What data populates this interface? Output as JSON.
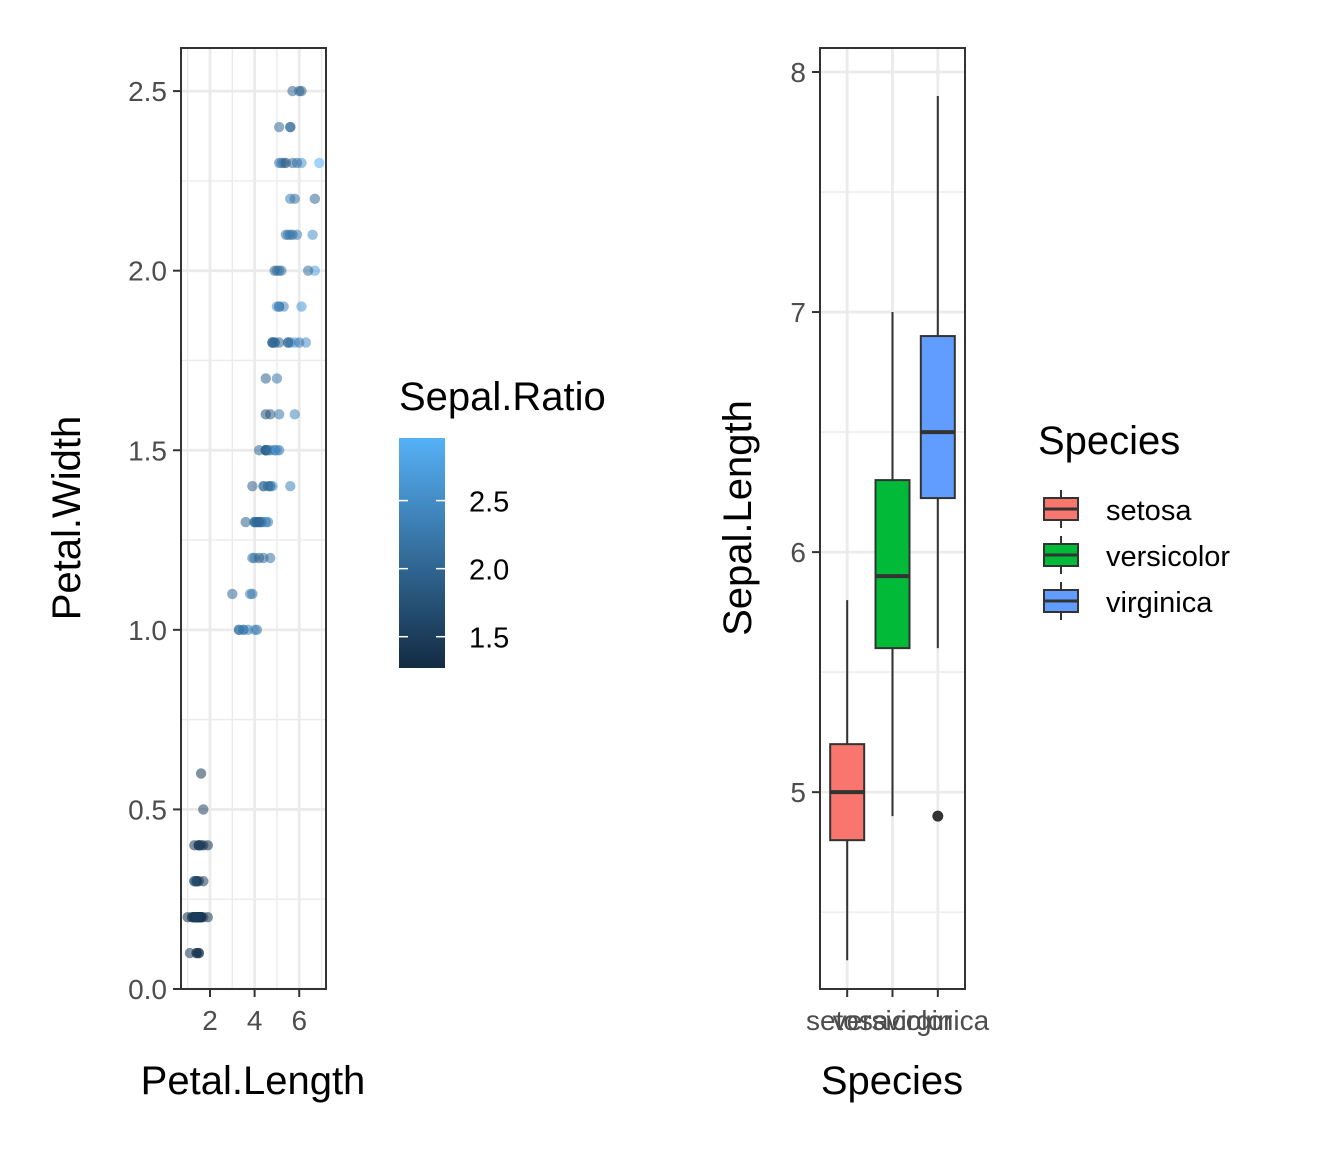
{
  "chart_data": [
    {
      "type": "scatter",
      "title": "",
      "xlabel": "Petal.Length",
      "ylabel": "Petal.Width",
      "xlim": [
        0.7,
        7.2
      ],
      "ylim": [
        0.0,
        2.62
      ],
      "x_ticks": [
        2,
        4,
        6
      ],
      "x_tick_labels": [
        "2",
        "4",
        "6"
      ],
      "y_ticks": [
        0.0,
        0.5,
        1.0,
        1.5,
        2.0,
        2.5
      ],
      "y_tick_labels": [
        "0.0",
        "0.5",
        "1.0",
        "1.5",
        "2.0",
        "2.5"
      ],
      "grid": true,
      "color_legend": {
        "title": "Sepal.Ratio",
        "position": "right",
        "range": [
          1.27,
          2.96
        ],
        "breaks": [
          1.5,
          2.0,
          2.5
        ],
        "break_labels": [
          "1.5",
          "2.0",
          "2.5"
        ],
        "low_color": "#132B43",
        "high_color": "#56B1F7"
      },
      "points": [
        {
          "x": 1.4,
          "y": 0.2,
          "c": 1.43
        },
        {
          "x": 1.4,
          "y": 0.2,
          "c": 1.63
        },
        {
          "x": 1.3,
          "y": 0.2,
          "c": 1.47
        },
        {
          "x": 1.5,
          "y": 0.2,
          "c": 1.48
        },
        {
          "x": 1.4,
          "y": 0.2,
          "c": 1.39
        },
        {
          "x": 1.7,
          "y": 0.4,
          "c": 1.39
        },
        {
          "x": 1.4,
          "y": 0.3,
          "c": 1.35
        },
        {
          "x": 1.5,
          "y": 0.2,
          "c": 1.47
        },
        {
          "x": 1.4,
          "y": 0.2,
          "c": 1.52
        },
        {
          "x": 1.5,
          "y": 0.1,
          "c": 1.58
        },
        {
          "x": 1.5,
          "y": 0.2,
          "c": 1.46
        },
        {
          "x": 1.6,
          "y": 0.2,
          "c": 1.41
        },
        {
          "x": 1.4,
          "y": 0.1,
          "c": 1.6
        },
        {
          "x": 1.1,
          "y": 0.1,
          "c": 1.43
        },
        {
          "x": 1.2,
          "y": 0.2,
          "c": 1.45
        },
        {
          "x": 1.5,
          "y": 0.4,
          "c": 1.3
        },
        {
          "x": 1.3,
          "y": 0.4,
          "c": 1.39
        },
        {
          "x": 1.4,
          "y": 0.3,
          "c": 1.46
        },
        {
          "x": 1.7,
          "y": 0.3,
          "c": 1.5
        },
        {
          "x": 1.5,
          "y": 0.3,
          "c": 1.34
        },
        {
          "x": 1.7,
          "y": 0.2,
          "c": 1.59
        },
        {
          "x": 1.5,
          "y": 0.4,
          "c": 1.38
        },
        {
          "x": 1.0,
          "y": 0.2,
          "c": 1.28
        },
        {
          "x": 1.7,
          "y": 0.5,
          "c": 1.55
        },
        {
          "x": 1.9,
          "y": 0.2,
          "c": 1.41
        },
        {
          "x": 1.6,
          "y": 0.2,
          "c": 1.67
        },
        {
          "x": 1.6,
          "y": 0.4,
          "c": 1.47
        },
        {
          "x": 1.5,
          "y": 0.2,
          "c": 1.49
        },
        {
          "x": 1.4,
          "y": 0.2,
          "c": 1.53
        },
        {
          "x": 1.6,
          "y": 0.2,
          "c": 1.47
        },
        {
          "x": 1.6,
          "y": 0.2,
          "c": 1.55
        },
        {
          "x": 1.5,
          "y": 0.4,
          "c": 1.59
        },
        {
          "x": 1.5,
          "y": 0.1,
          "c": 1.27
        },
        {
          "x": 1.4,
          "y": 0.2,
          "c": 1.31
        },
        {
          "x": 1.5,
          "y": 0.2,
          "c": 1.58
        },
        {
          "x": 1.2,
          "y": 0.2,
          "c": 1.56
        },
        {
          "x": 1.3,
          "y": 0.2,
          "c": 1.57
        },
        {
          "x": 1.4,
          "y": 0.1,
          "c": 1.36
        },
        {
          "x": 1.3,
          "y": 0.2,
          "c": 1.47
        },
        {
          "x": 1.5,
          "y": 0.2,
          "c": 1.5
        },
        {
          "x": 1.3,
          "y": 0.3,
          "c": 1.43
        },
        {
          "x": 1.3,
          "y": 0.3,
          "c": 1.96
        },
        {
          "x": 1.3,
          "y": 0.2,
          "c": 1.38
        },
        {
          "x": 1.6,
          "y": 0.6,
          "c": 1.43
        },
        {
          "x": 1.9,
          "y": 0.4,
          "c": 1.34
        },
        {
          "x": 1.4,
          "y": 0.3,
          "c": 1.6
        },
        {
          "x": 1.6,
          "y": 0.2,
          "c": 1.34
        },
        {
          "x": 1.4,
          "y": 0.2,
          "c": 1.44
        },
        {
          "x": 1.5,
          "y": 0.2,
          "c": 1.43
        },
        {
          "x": 1.4,
          "y": 0.2,
          "c": 1.52
        },
        {
          "x": 4.7,
          "y": 1.4,
          "c": 2.19
        },
        {
          "x": 4.5,
          "y": 1.5,
          "c": 2.0
        },
        {
          "x": 4.9,
          "y": 1.5,
          "c": 2.23
        },
        {
          "x": 4.0,
          "y": 1.3,
          "c": 2.39
        },
        {
          "x": 4.6,
          "y": 1.5,
          "c": 2.32
        },
        {
          "x": 4.5,
          "y": 1.3,
          "c": 2.04
        },
        {
          "x": 4.7,
          "y": 1.6,
          "c": 1.91
        },
        {
          "x": 3.3,
          "y": 1.0,
          "c": 2.04
        },
        {
          "x": 4.6,
          "y": 1.3,
          "c": 2.28
        },
        {
          "x": 3.9,
          "y": 1.4,
          "c": 1.93
        },
        {
          "x": 3.5,
          "y": 1.0,
          "c": 2.5
        },
        {
          "x": 4.2,
          "y": 1.5,
          "c": 1.97
        },
        {
          "x": 4.0,
          "y": 1.0,
          "c": 2.73
        },
        {
          "x": 4.7,
          "y": 1.4,
          "c": 2.1
        },
        {
          "x": 3.6,
          "y": 1.3,
          "c": 1.93
        },
        {
          "x": 4.4,
          "y": 1.4,
          "c": 2.16
        },
        {
          "x": 4.5,
          "y": 1.5,
          "c": 1.87
        },
        {
          "x": 4.1,
          "y": 1.0,
          "c": 2.15
        },
        {
          "x": 4.5,
          "y": 1.5,
          "c": 2.82
        },
        {
          "x": 3.9,
          "y": 1.1,
          "c": 2.24
        },
        {
          "x": 4.8,
          "y": 1.8,
          "c": 1.84
        },
        {
          "x": 4.0,
          "y": 1.3,
          "c": 2.18
        },
        {
          "x": 4.9,
          "y": 1.5,
          "c": 2.52
        },
        {
          "x": 4.7,
          "y": 1.2,
          "c": 2.18
        },
        {
          "x": 4.3,
          "y": 1.3,
          "c": 2.21
        },
        {
          "x": 4.4,
          "y": 1.4,
          "c": 2.2
        },
        {
          "x": 4.8,
          "y": 1.4,
          "c": 2.43
        },
        {
          "x": 5.0,
          "y": 1.7,
          "c": 2.23
        },
        {
          "x": 4.5,
          "y": 1.5,
          "c": 2.07
        },
        {
          "x": 3.5,
          "y": 1.0,
          "c": 2.19
        },
        {
          "x": 3.8,
          "y": 1.1,
          "c": 2.29
        },
        {
          "x": 3.7,
          "y": 1.0,
          "c": 2.29
        },
        {
          "x": 3.9,
          "y": 1.2,
          "c": 2.15
        },
        {
          "x": 5.1,
          "y": 1.6,
          "c": 2.22
        },
        {
          "x": 4.5,
          "y": 1.5,
          "c": 1.8
        },
        {
          "x": 4.5,
          "y": 1.6,
          "c": 1.76
        },
        {
          "x": 4.7,
          "y": 1.5,
          "c": 2.16
        },
        {
          "x": 4.4,
          "y": 1.3,
          "c": 2.74
        },
        {
          "x": 4.1,
          "y": 1.3,
          "c": 1.87
        },
        {
          "x": 4.0,
          "y": 1.3,
          "c": 2.2
        },
        {
          "x": 4.4,
          "y": 1.2,
          "c": 2.12
        },
        {
          "x": 4.6,
          "y": 1.4,
          "c": 2.03
        },
        {
          "x": 4.0,
          "y": 1.2,
          "c": 2.23
        },
        {
          "x": 3.3,
          "y": 1.0,
          "c": 2.17
        },
        {
          "x": 4.2,
          "y": 1.3,
          "c": 2.07
        },
        {
          "x": 4.2,
          "y": 1.2,
          "c": 1.9
        },
        {
          "x": 4.2,
          "y": 1.3,
          "c": 1.97
        },
        {
          "x": 4.3,
          "y": 1.3,
          "c": 2.14
        },
        {
          "x": 3.0,
          "y": 1.1,
          "c": 2.04
        },
        {
          "x": 4.1,
          "y": 1.3,
          "c": 2.04
        },
        {
          "x": 6.0,
          "y": 2.5,
          "c": 1.91
        },
        {
          "x": 5.1,
          "y": 1.9,
          "c": 2.15
        },
        {
          "x": 5.9,
          "y": 2.1,
          "c": 2.37
        },
        {
          "x": 5.6,
          "y": 1.8,
          "c": 2.17
        },
        {
          "x": 5.8,
          "y": 2.2,
          "c": 2.17
        },
        {
          "x": 6.6,
          "y": 2.1,
          "c": 2.53
        },
        {
          "x": 4.5,
          "y": 1.7,
          "c": 1.96
        },
        {
          "x": 6.3,
          "y": 1.8,
          "c": 2.52
        },
        {
          "x": 5.8,
          "y": 1.8,
          "c": 2.68
        },
        {
          "x": 6.1,
          "y": 2.5,
          "c": 2.0
        },
        {
          "x": 5.1,
          "y": 2.0,
          "c": 2.03
        },
        {
          "x": 5.3,
          "y": 1.9,
          "c": 2.37
        },
        {
          "x": 5.5,
          "y": 2.1,
          "c": 2.27
        },
        {
          "x": 5.0,
          "y": 2.0,
          "c": 2.28
        },
        {
          "x": 5.1,
          "y": 2.4,
          "c": 2.07
        },
        {
          "x": 5.3,
          "y": 2.3,
          "c": 2.0
        },
        {
          "x": 5.5,
          "y": 1.8,
          "c": 2.17
        },
        {
          "x": 6.7,
          "y": 2.2,
          "c": 2.03
        },
        {
          "x": 6.9,
          "y": 2.3,
          "c": 2.96
        },
        {
          "x": 5.0,
          "y": 1.5,
          "c": 2.73
        },
        {
          "x": 5.7,
          "y": 2.3,
          "c": 2.16
        },
        {
          "x": 4.9,
          "y": 2.0,
          "c": 2.0
        },
        {
          "x": 6.7,
          "y": 2.0,
          "c": 2.75
        },
        {
          "x": 4.9,
          "y": 1.8,
          "c": 2.33
        },
        {
          "x": 5.7,
          "y": 2.1,
          "c": 2.03
        },
        {
          "x": 6.0,
          "y": 1.8,
          "c": 2.25
        },
        {
          "x": 4.8,
          "y": 1.8,
          "c": 2.21
        },
        {
          "x": 4.9,
          "y": 1.8,
          "c": 2.03
        },
        {
          "x": 5.6,
          "y": 2.1,
          "c": 2.29
        },
        {
          "x": 5.8,
          "y": 1.6,
          "c": 2.4
        },
        {
          "x": 6.1,
          "y": 1.9,
          "c": 2.64
        },
        {
          "x": 6.4,
          "y": 2.0,
          "c": 2.08
        },
        {
          "x": 5.6,
          "y": 2.2,
          "c": 2.29
        },
        {
          "x": 5.1,
          "y": 1.5,
          "c": 2.25
        },
        {
          "x": 5.6,
          "y": 1.4,
          "c": 2.35
        },
        {
          "x": 6.1,
          "y": 2.3,
          "c": 2.57
        },
        {
          "x": 5.6,
          "y": 2.4,
          "c": 1.85
        },
        {
          "x": 5.5,
          "y": 1.8,
          "c": 2.06
        },
        {
          "x": 4.8,
          "y": 1.8,
          "c": 2.0
        },
        {
          "x": 5.4,
          "y": 2.1,
          "c": 2.24
        },
        {
          "x": 5.6,
          "y": 2.4,
          "c": 2.16
        },
        {
          "x": 5.1,
          "y": 2.3,
          "c": 2.23
        },
        {
          "x": 5.1,
          "y": 1.9,
          "c": 2.15
        },
        {
          "x": 5.9,
          "y": 2.3,
          "c": 2.12
        },
        {
          "x": 5.7,
          "y": 2.5,
          "c": 2.03
        },
        {
          "x": 5.2,
          "y": 2.3,
          "c": 2.23
        },
        {
          "x": 5.0,
          "y": 1.9,
          "c": 2.52
        },
        {
          "x": 5.2,
          "y": 2.0,
          "c": 2.17
        },
        {
          "x": 5.4,
          "y": 2.3,
          "c": 1.82
        },
        {
          "x": 5.1,
          "y": 1.8,
          "c": 1.97
        }
      ]
    },
    {
      "type": "box",
      "title": "",
      "xlabel": "Species",
      "ylabel": "Sepal.Length",
      "ylim": [
        4.18,
        8.1
      ],
      "y_ticks": [
        5,
        6,
        7,
        8
      ],
      "y_tick_labels": [
        "5",
        "6",
        "7",
        "8"
      ],
      "grid": true,
      "legend": {
        "title": "Species",
        "position": "right"
      },
      "categories": [
        "setosa",
        "versicolor",
        "virginica"
      ],
      "boxes": [
        {
          "name": "setosa",
          "color": "#F8766D",
          "whisker_low": 4.3,
          "q1": 4.8,
          "median": 5.0,
          "q3": 5.2,
          "whisker_high": 5.8,
          "outliers": []
        },
        {
          "name": "versicolor",
          "color": "#00BA38",
          "whisker_low": 4.9,
          "q1": 5.6,
          "median": 5.9,
          "q3": 6.3,
          "whisker_high": 7.0,
          "outliers": []
        },
        {
          "name": "virginica",
          "color": "#619CFF",
          "whisker_low": 5.6,
          "q1": 6.225,
          "median": 6.5,
          "q3": 6.9,
          "whisker_high": 7.9,
          "outliers": [
            4.9
          ]
        }
      ]
    }
  ]
}
